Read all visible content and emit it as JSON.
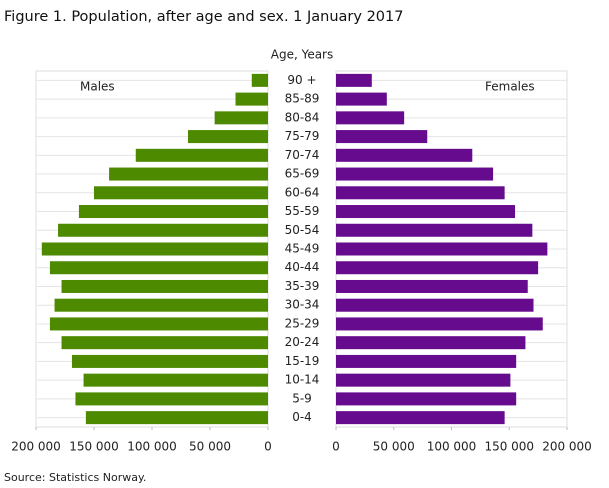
{
  "chart_data": {
    "type": "pyramid",
    "title": "Figure 1. Population, after age and sex. 1 January 2017",
    "y_label": "Age, Years",
    "source": "Source: Statistics Norway.",
    "categories": [
      "90 +",
      "85-89",
      "80-84",
      "75-79",
      "70-74",
      "65-69",
      "60-64",
      "55-59",
      "50-54",
      "45-49",
      "40-44",
      "35-39",
      "30-34",
      "25-29",
      "20-24",
      "15-19",
      "10-14",
      "5-9",
      "0-4"
    ],
    "series": [
      {
        "name": "Males",
        "color": "#4e8a00",
        "values": [
          14000,
          28000,
          46000,
          69000,
          114000,
          137000,
          150000,
          163000,
          181000,
          195000,
          188000,
          178000,
          184000,
          188000,
          178000,
          169000,
          159000,
          166000,
          157000
        ]
      },
      {
        "name": "Females",
        "color": "#660a8e",
        "values": [
          31000,
          44000,
          59000,
          79000,
          118000,
          136000,
          146000,
          155000,
          170000,
          183000,
          175000,
          166000,
          171000,
          179000,
          164000,
          156000,
          151000,
          156000,
          146000
        ]
      }
    ],
    "xlim": [
      0,
      200000
    ],
    "xticks": [
      0,
      {
        "value": 50000,
        "label": "50 000"
      },
      {
        "value": 100000,
        "label": "100 000"
      },
      {
        "value": 150000,
        "label": "150 000"
      },
      {
        "value": 200000,
        "label": "200 000"
      }
    ],
    "grid": true
  }
}
